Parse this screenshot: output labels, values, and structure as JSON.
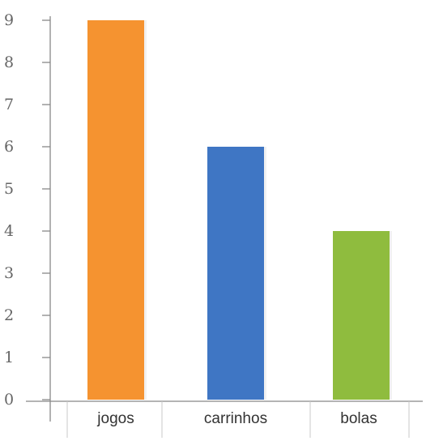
{
  "chart_data": {
    "type": "bar",
    "categories": [
      "jogos",
      "carrinhos",
      "bolas"
    ],
    "values": [
      9,
      6,
      4
    ],
    "colors": [
      "#f59330",
      "#3f76c4",
      "#8fbc3e"
    ],
    "ylim": [
      0,
      9
    ],
    "yticks": [
      "0",
      "1",
      "2",
      "3",
      "4",
      "5",
      "6",
      "7",
      "8",
      "9"
    ],
    "title": "",
    "xlabel": "",
    "ylabel": "",
    "grid": false,
    "legend": "none"
  }
}
